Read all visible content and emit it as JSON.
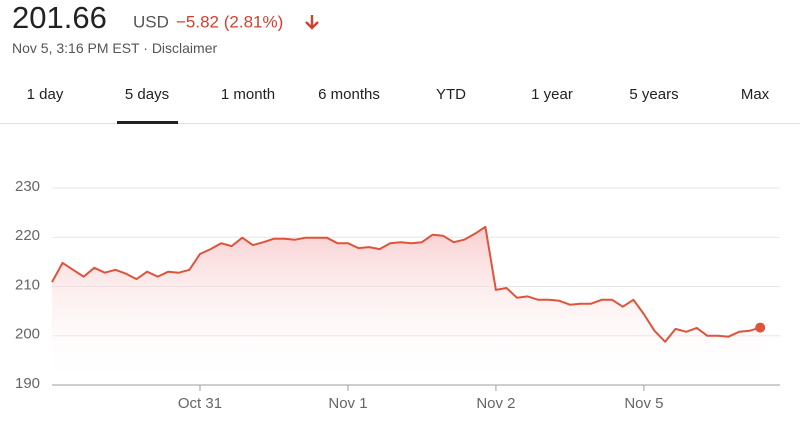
{
  "header": {
    "price": "201.66",
    "currency": "USD",
    "change": "−5.82 (2.81%)",
    "timestamp": "Nov 5, 3:16 PM EST",
    "separator": "·",
    "disclaimer": "Disclaimer"
  },
  "tabs": {
    "items": [
      "1 day",
      "5 days",
      "1 month",
      "6 months",
      "YTD",
      "1 year",
      "5 years",
      "Max"
    ],
    "selected": 1
  },
  "chart_data": {
    "type": "line",
    "color": "#e0533b",
    "grid": true,
    "categories": [
      null,
      null,
      null,
      null,
      null,
      null,
      null,
      null,
      null,
      null,
      null,
      null,
      null,
      null,
      "Oct 31",
      null,
      null,
      null,
      null,
      null,
      null,
      null,
      null,
      null,
      null,
      null,
      null,
      null,
      "Nov 1",
      null,
      null,
      null,
      null,
      null,
      null,
      null,
      null,
      null,
      null,
      null,
      null,
      null,
      "Nov 2",
      null,
      null,
      null,
      null,
      null,
      null,
      null,
      null,
      null,
      null,
      null,
      null,
      null,
      "Nov 5",
      null,
      null,
      null,
      null,
      null,
      null,
      null,
      null,
      null,
      null,
      null
    ],
    "values": [
      210.9,
      214.8,
      213.4,
      212,
      213.8,
      212.8,
      213.4,
      212.6,
      211.5,
      213,
      212,
      213,
      212.8,
      213.4,
      216.6,
      217.6,
      218.8,
      218.2,
      219.9,
      218.4,
      219,
      219.7,
      219.7,
      219.5,
      219.9,
      219.9,
      219.9,
      218.8,
      218.8,
      217.8,
      218,
      217.6,
      218.8,
      219,
      218.8,
      219,
      220.5,
      220.3,
      219,
      219.5,
      220.7,
      222.1,
      209.3,
      209.7,
      207.7,
      208,
      207.3,
      207.3,
      207.1,
      206.3,
      206.5,
      206.5,
      207.3,
      207.3,
      205.9,
      207.3,
      204.4,
      201,
      198.8,
      201.4,
      200.8,
      201.6,
      200,
      200,
      199.8,
      200.8,
      201,
      201.66
    ],
    "ylim": [
      190,
      230
    ],
    "yticks": [
      190,
      200,
      210,
      220,
      230
    ]
  }
}
